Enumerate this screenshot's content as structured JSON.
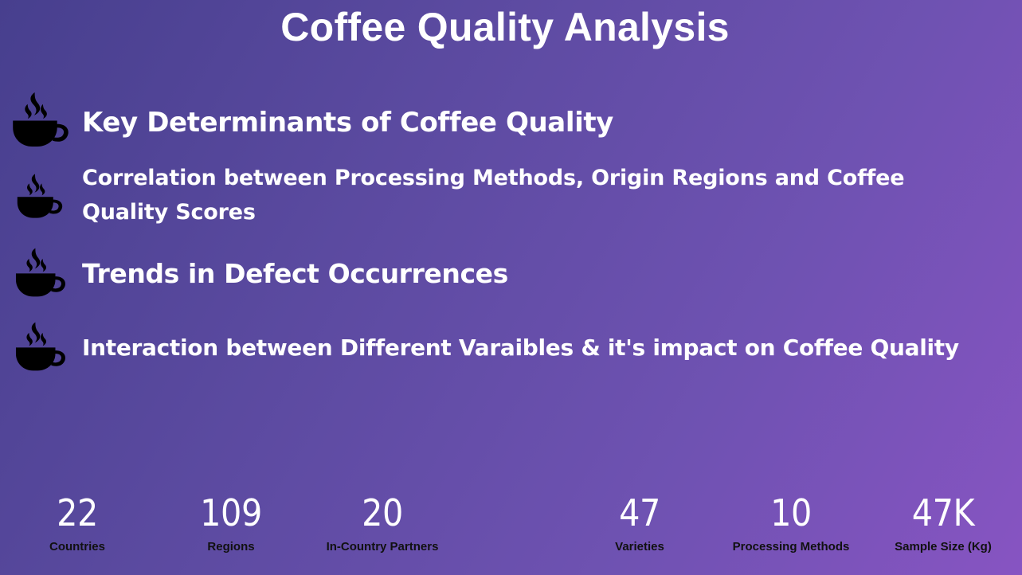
{
  "title": "Coffee Quality Analysis",
  "topics": [
    {
      "icon": "coffee-cup-icon",
      "text": "Key Determinants of Coffee Quality"
    },
    {
      "icon": "coffee-cup-icon",
      "text": "Correlation between Processing Methods, Origin Regions and Coffee Quality Scores"
    },
    {
      "icon": "coffee-cup-icon",
      "text": "Trends in Defect Occurrences"
    },
    {
      "icon": "coffee-cup-icon",
      "text": "Interaction between Different Varaibles & it's impact on Coffee Quality"
    }
  ],
  "stats": [
    {
      "value": "22",
      "label": "Countries"
    },
    {
      "value": "109",
      "label": "Regions"
    },
    {
      "value": "20",
      "label": "In-Country Partners"
    },
    {
      "value": "47",
      "label": "Varieties"
    },
    {
      "value": "10",
      "label": "Processing Methods"
    },
    {
      "value": "47K",
      "label": "Sample Size (Kg)"
    }
  ],
  "colors": {
    "background_start": "#473f8e",
    "background_end": "#8754c2",
    "text_primary": "#ffffff",
    "label_text": "#111111",
    "icon": "#000000"
  }
}
